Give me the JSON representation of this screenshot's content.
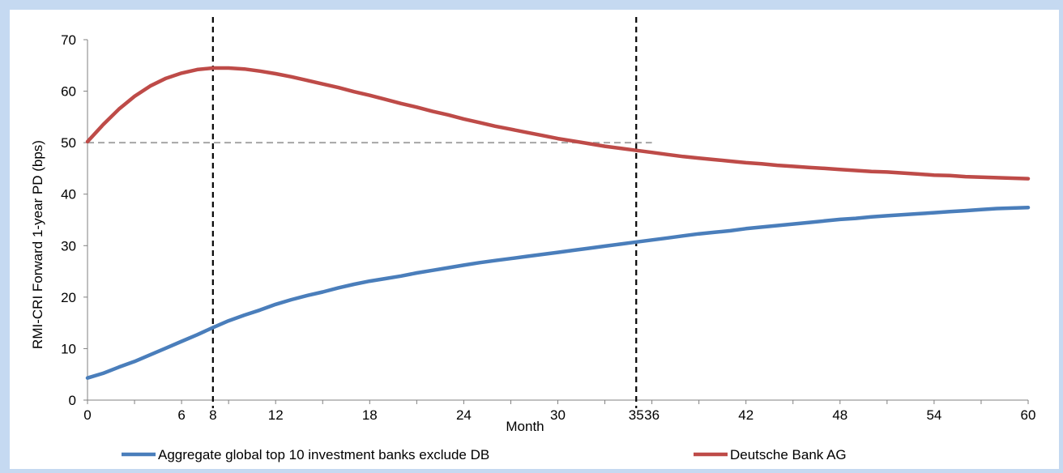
{
  "chart_data": {
    "type": "line",
    "title": "",
    "xlabel": "Month",
    "ylabel": "RMI-CRI Forward 1-year PD (bps)",
    "xlim": [
      0,
      60
    ],
    "ylim": [
      0,
      70
    ],
    "x_ticks": [
      0,
      6,
      8,
      12,
      18,
      24,
      30,
      35,
      36,
      42,
      48,
      54,
      60
    ],
    "y_ticks": [
      0,
      10,
      20,
      30,
      40,
      50,
      60,
      70
    ],
    "grid": false,
    "legend_position": "bottom",
    "x": [
      0,
      1,
      2,
      3,
      4,
      5,
      6,
      7,
      8,
      9,
      10,
      11,
      12,
      13,
      14,
      15,
      16,
      17,
      18,
      19,
      20,
      21,
      22,
      23,
      24,
      25,
      26,
      27,
      28,
      29,
      30,
      31,
      32,
      33,
      34,
      35,
      36,
      37,
      38,
      39,
      40,
      41,
      42,
      43,
      44,
      45,
      46,
      47,
      48,
      49,
      50,
      51,
      52,
      53,
      54,
      55,
      56,
      57,
      58,
      59,
      60
    ],
    "series": [
      {
        "name": "Aggregate global top 10 investment banks exclude DB",
        "color": "#4a7ebb",
        "values": [
          4.3,
          5.2,
          6.4,
          7.5,
          8.8,
          10.1,
          11.4,
          12.7,
          14.1,
          15.4,
          16.5,
          17.5,
          18.6,
          19.5,
          20.3,
          21.0,
          21.8,
          22.5,
          23.1,
          23.6,
          24.1,
          24.7,
          25.2,
          25.7,
          26.2,
          26.7,
          27.1,
          27.5,
          27.9,
          28.3,
          28.7,
          29.1,
          29.5,
          29.9,
          30.3,
          30.7,
          31.1,
          31.5,
          31.9,
          32.3,
          32.6,
          32.9,
          33.3,
          33.6,
          33.9,
          34.2,
          34.5,
          34.8,
          35.1,
          35.3,
          35.6,
          35.8,
          36.0,
          36.2,
          36.4,
          36.6,
          36.8,
          37.0,
          37.2,
          37.3,
          37.4
        ]
      },
      {
        "name": "Deutsche Bank AG",
        "color": "#be4b48",
        "values": [
          50.2,
          53.5,
          56.5,
          59.0,
          61.0,
          62.5,
          63.5,
          64.2,
          64.5,
          64.5,
          64.3,
          63.9,
          63.4,
          62.8,
          62.1,
          61.4,
          60.7,
          59.9,
          59.2,
          58.4,
          57.6,
          56.9,
          56.1,
          55.4,
          54.6,
          53.9,
          53.2,
          52.6,
          52.0,
          51.4,
          50.8,
          50.3,
          49.8,
          49.3,
          48.9,
          48.5,
          48.1,
          47.7,
          47.3,
          47.0,
          46.7,
          46.4,
          46.1,
          45.9,
          45.6,
          45.4,
          45.2,
          45.0,
          44.8,
          44.6,
          44.4,
          44.3,
          44.1,
          43.9,
          43.7,
          43.6,
          43.4,
          43.3,
          43.2,
          43.1,
          43.0
        ]
      }
    ],
    "reference_lines": [
      {
        "type": "vertical",
        "x": 8,
        "style": "dashed",
        "color": "#000000"
      },
      {
        "type": "vertical",
        "x": 35,
        "style": "dashed",
        "color": "#000000"
      },
      {
        "type": "horizontal",
        "y": 50,
        "x_range": [
          0,
          36
        ],
        "style": "dashed",
        "color": "#a6a6a6"
      }
    ],
    "colors": {
      "background": "#c5d9f1",
      "plot_area": "#ffffff",
      "axis": "#808080"
    }
  }
}
